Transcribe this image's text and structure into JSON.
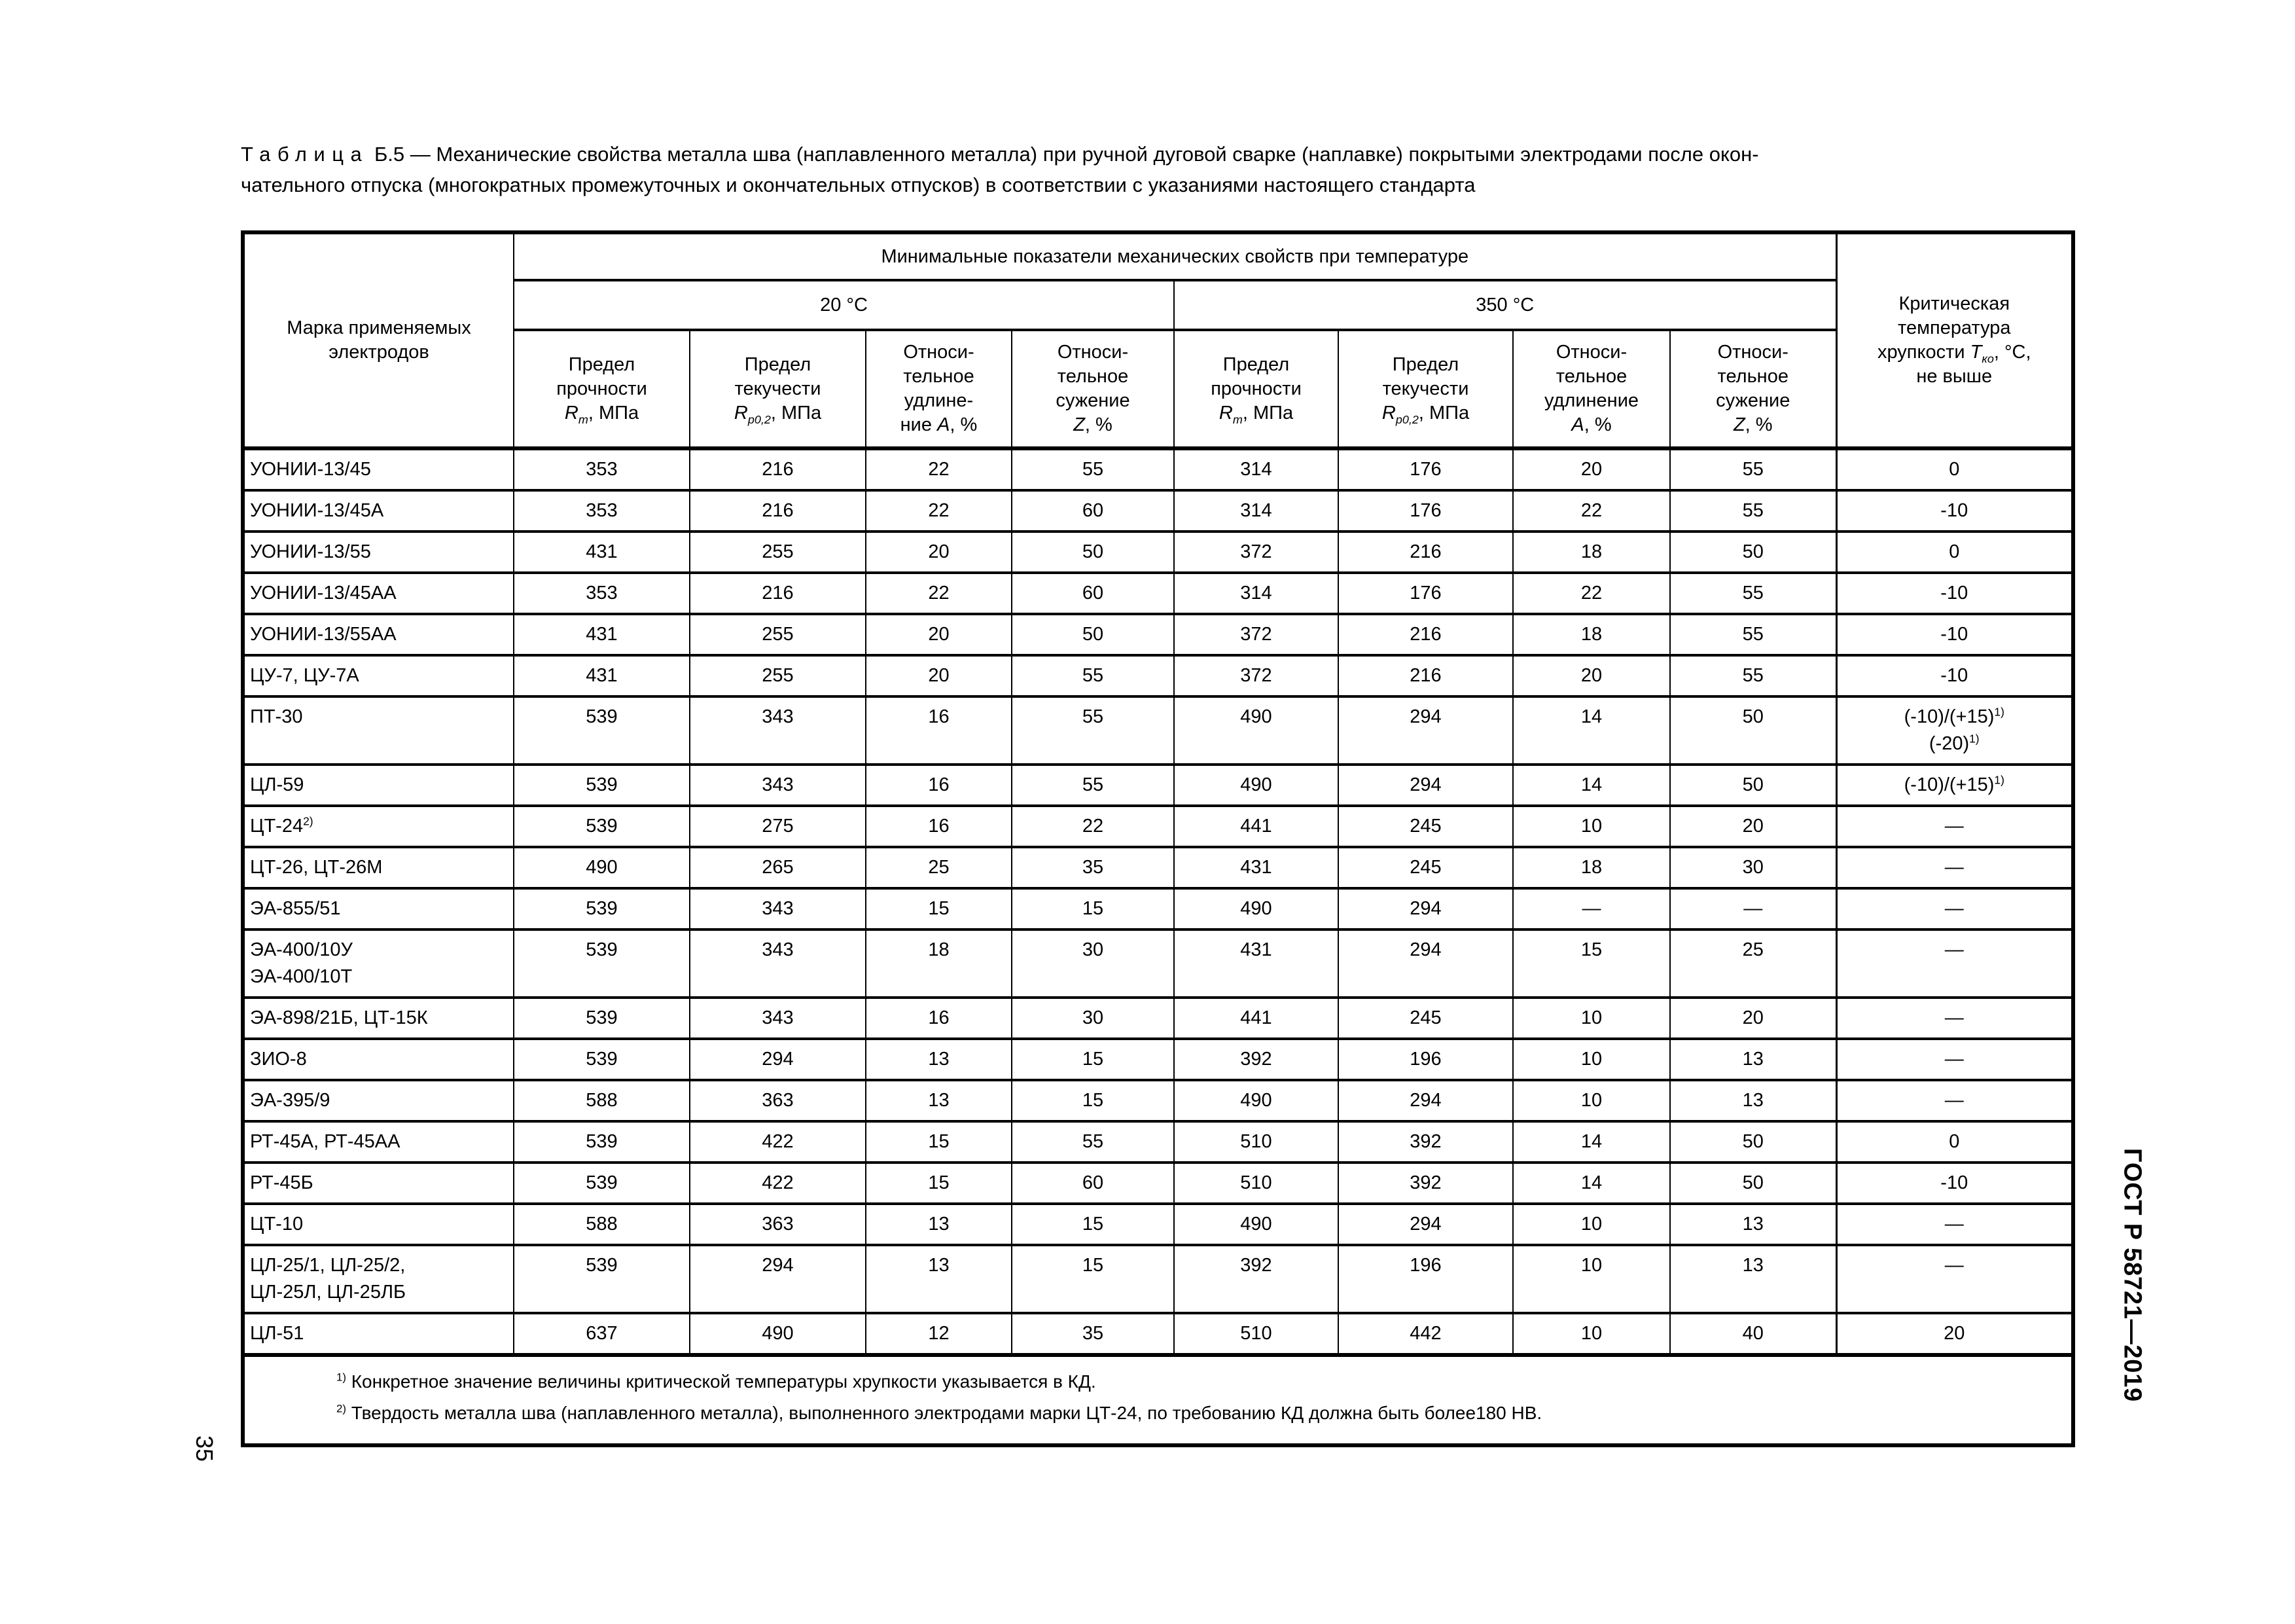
{
  "colors": {
    "text": "#000000",
    "background": "#ffffff"
  },
  "page": {
    "page_number": "35",
    "standard_code": "ГОСТ Р 58721—2019"
  },
  "title": {
    "word": "Таблица",
    "rest_line1": " Б.5 — Механические свойства металла шва (наплавленного металла) при ручной дуговой сварке (наплавке) покрытыми  электродами после окон-",
    "line2": "чательного отпуска (многократных промежуточных и окончательных отпусков) в соответствии с указаниями настоящего стандарта"
  },
  "table": {
    "header": {
      "electrode_brand": "Марка применяемых электродов",
      "group": "Минимальные показатели механических свойств при температуре",
      "temp20": "20 °С",
      "temp350": "350 °С",
      "stat_columns": [
        {
          "lines": [
            "Предел",
            "прочности"
          ],
          "pre": "",
          "sym": "R",
          "sub": "m",
          "tail": ", МПа"
        },
        {
          "lines": [
            "Предел",
            "текучести"
          ],
          "pre": "",
          "sym": "R",
          "sub": "p0,2",
          "tail": ", МПа"
        },
        {
          "lines": [
            "Относи-",
            "тельное",
            "удлине-"
          ],
          "pre": "ние ",
          "sym": "A",
          "sub": "",
          "tail": ", %"
        },
        {
          "lines": [
            "Относи-",
            "тельное",
            "сужение"
          ],
          "pre": "",
          "sym": "Z",
          "sub": "",
          "tail": ", %"
        },
        {
          "lines": [
            "Предел",
            "прочности"
          ],
          "pre": "",
          "sym": "R",
          "sub": "m",
          "tail": ", МПа"
        },
        {
          "lines": [
            "Предел",
            "текучести"
          ],
          "pre": "",
          "sym": "R",
          "sub": "p0,2",
          "tail": ", МПа"
        },
        {
          "lines": [
            "Относи-",
            "тельное",
            "удлинение"
          ],
          "pre": "",
          "sym": "A",
          "sub": "",
          "tail": ", %"
        },
        {
          "lines": [
            "Относи-",
            "тельное",
            "сужение"
          ],
          "pre": "",
          "sym": "Z",
          "sub": "",
          "tail": ", %"
        }
      ],
      "critical": {
        "lines": [
          "Критическая",
          "температура"
        ],
        "pre": "хрупкости ",
        "sym": "T",
        "sub": "ко",
        "tail": ", °С,",
        "lines2": [
          "не выше"
        ]
      }
    },
    "rows": [
      {
        "name": [
          {
            "t": "УОНИИ-13/45"
          }
        ],
        "vals": [
          "353",
          "216",
          "22",
          "55",
          "314",
          "176",
          "20",
          "55"
        ],
        "crit": [
          {
            "t": "0"
          }
        ]
      },
      {
        "name": [
          {
            "t": "УОНИИ-13/45А"
          }
        ],
        "vals": [
          "353",
          "216",
          "22",
          "60",
          "314",
          "176",
          "22",
          "55"
        ],
        "crit": [
          {
            "t": "-10"
          }
        ]
      },
      {
        "name": [
          {
            "t": "УОНИИ-13/55"
          }
        ],
        "vals": [
          "431",
          "255",
          "20",
          "50",
          "372",
          "216",
          "18",
          "50"
        ],
        "crit": [
          {
            "t": "0"
          }
        ]
      },
      {
        "name": [
          {
            "t": "УОНИИ-13/45АА"
          }
        ],
        "vals": [
          "353",
          "216",
          "22",
          "60",
          "314",
          "176",
          "22",
          "55"
        ],
        "crit": [
          {
            "t": "-10"
          }
        ]
      },
      {
        "name": [
          {
            "t": "УОНИИ-13/55АА"
          }
        ],
        "vals": [
          "431",
          "255",
          "20",
          "50",
          "372",
          "216",
          "18",
          "55"
        ],
        "crit": [
          {
            "t": "-10"
          }
        ]
      },
      {
        "name": [
          {
            "t": "ЦУ-7, ЦУ-7А"
          }
        ],
        "vals": [
          "431",
          "255",
          "20",
          "55",
          "372",
          "216",
          "20",
          "55"
        ],
        "crit": [
          {
            "t": "-10"
          }
        ]
      },
      {
        "name": [
          {
            "t": "ПТ-30"
          }
        ],
        "vals": [
          "539",
          "343",
          "16",
          "55",
          "490",
          "294",
          "14",
          "50"
        ],
        "crit": [
          {
            "t": "(-10)/(+15)",
            "sup": "1)"
          },
          {
            "t": "(-20)",
            "sup": "1)"
          }
        ]
      },
      {
        "name": [
          {
            "t": "ЦЛ-59"
          }
        ],
        "vals": [
          "539",
          "343",
          "16",
          "55",
          "490",
          "294",
          "14",
          "50"
        ],
        "crit": [
          {
            "t": "(-10)/(+15)",
            "sup": "1)"
          }
        ]
      },
      {
        "name": [
          {
            "t": "ЦТ-24",
            "sup": "2)"
          }
        ],
        "vals": [
          "539",
          "275",
          "16",
          "22",
          "441",
          "245",
          "10",
          "20"
        ],
        "crit": [
          {
            "t": "—"
          }
        ]
      },
      {
        "name": [
          {
            "t": "ЦТ-26, ЦТ-26М"
          }
        ],
        "vals": [
          "490",
          "265",
          "25",
          "35",
          "431",
          "245",
          "18",
          "30"
        ],
        "crit": [
          {
            "t": "—"
          }
        ]
      },
      {
        "name": [
          {
            "t": "ЭА-855/51"
          }
        ],
        "vals": [
          "539",
          "343",
          "15",
          "15",
          "490",
          "294",
          "—",
          "—"
        ],
        "crit": [
          {
            "t": "—"
          }
        ]
      },
      {
        "name": [
          {
            "t": "ЭА-400/10У"
          },
          {
            "t": "ЭА-400/10Т"
          }
        ],
        "vals": [
          "539",
          "343",
          "18",
          "30",
          "431",
          "294",
          "15",
          "25"
        ],
        "crit": [
          {
            "t": "—"
          }
        ]
      },
      {
        "name": [
          {
            "t": "ЭА-898/21Б, ЦТ-15К"
          }
        ],
        "vals": [
          "539",
          "343",
          "16",
          "30",
          "441",
          "245",
          "10",
          "20"
        ],
        "crit": [
          {
            "t": "—"
          }
        ]
      },
      {
        "name": [
          {
            "t": "ЗИО-8"
          }
        ],
        "vals": [
          "539",
          "294",
          "13",
          "15",
          "392",
          "196",
          "10",
          "13"
        ],
        "crit": [
          {
            "t": "—"
          }
        ]
      },
      {
        "name": [
          {
            "t": "ЭА-395/9"
          }
        ],
        "vals": [
          "588",
          "363",
          "13",
          "15",
          "490",
          "294",
          "10",
          "13"
        ],
        "crit": [
          {
            "t": "—"
          }
        ]
      },
      {
        "name": [
          {
            "t": "РТ-45А, РТ-45АА"
          }
        ],
        "vals": [
          "539",
          "422",
          "15",
          "55",
          "510",
          "392",
          "14",
          "50"
        ],
        "crit": [
          {
            "t": "0"
          }
        ]
      },
      {
        "name": [
          {
            "t": "РТ-45Б"
          }
        ],
        "vals": [
          "539",
          "422",
          "15",
          "60",
          "510",
          "392",
          "14",
          "50"
        ],
        "crit": [
          {
            "t": "-10"
          }
        ]
      },
      {
        "name": [
          {
            "t": "ЦТ-10"
          }
        ],
        "vals": [
          "588",
          "363",
          "13",
          "15",
          "490",
          "294",
          "10",
          "13"
        ],
        "crit": [
          {
            "t": "—"
          }
        ]
      },
      {
        "name": [
          {
            "t": "ЦЛ-25/1, ЦЛ-25/2,"
          },
          {
            "t": "ЦЛ-25Л, ЦЛ-25ЛБ"
          }
        ],
        "vals": [
          "539",
          "294",
          "13",
          "15",
          "392",
          "196",
          "10",
          "13"
        ],
        "crit": [
          {
            "t": "—"
          }
        ]
      },
      {
        "name": [
          {
            "t": "ЦЛ-51"
          }
        ],
        "vals": [
          "637",
          "490",
          "12",
          "35",
          "510",
          "442",
          "10",
          "40"
        ],
        "crit": [
          {
            "t": "20"
          }
        ]
      }
    ],
    "footnotes": [
      {
        "sup": "1)",
        "text": "Конкретное значение величины критической температуры хрупкости указывается в КД."
      },
      {
        "sup": "2)",
        "text": "Твердость металла шва (наплавленного металла), выполненного электродами марки ЦТ-24, по требованию КД должна быть  более180 НВ."
      }
    ]
  }
}
